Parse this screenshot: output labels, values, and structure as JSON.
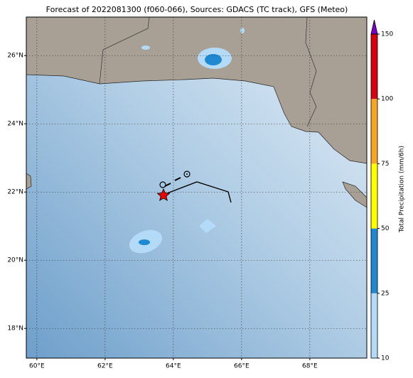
{
  "map": {
    "title": "Forecast of 2022081300 (f060-066), Sources: GDACS (TC track), GFS (Meteo)",
    "xlim": [
      59.69,
      69.67
    ],
    "ylim": [
      17.13,
      27.13
    ],
    "xticks": [
      {
        "value": 60,
        "label": "60°E"
      },
      {
        "value": 62,
        "label": "62°E"
      },
      {
        "value": 64,
        "label": "64°E"
      },
      {
        "value": 66,
        "label": "66°E"
      },
      {
        "value": 68,
        "label": "68°E"
      }
    ],
    "yticks": [
      {
        "value": 18,
        "label": "18°N"
      },
      {
        "value": 20,
        "label": "20°N"
      },
      {
        "value": 22,
        "label": "22°N"
      },
      {
        "value": 24,
        "label": "24°N"
      },
      {
        "value": 26,
        "label": "26°N"
      }
    ],
    "grid": true,
    "colorbar": {
      "label": "Total Precipitation (mm/6h)",
      "ticks": [
        10,
        25,
        50,
        75,
        100,
        150
      ],
      "colors": [
        "#b3daf7",
        "#1e88d0",
        "#ffff00",
        "#f5a623",
        "#d7000f"
      ],
      "extend_color": "#7b00c8"
    }
  }
}
